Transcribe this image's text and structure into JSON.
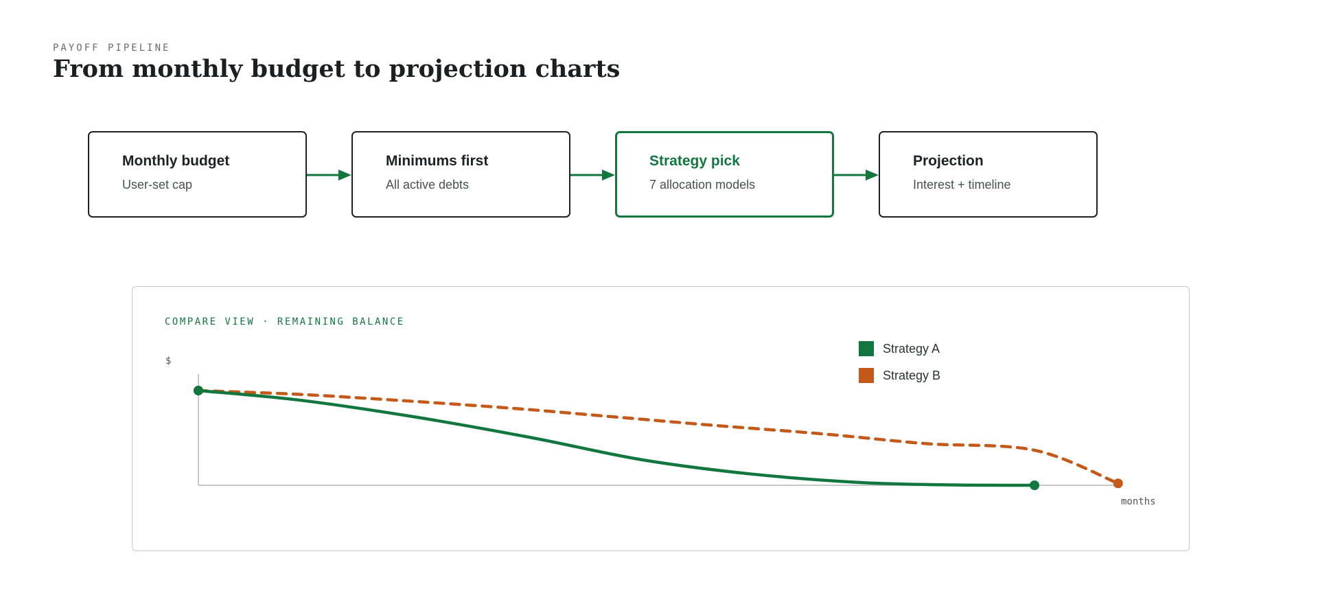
{
  "header": {
    "eyebrow": "PAYOFF PIPELINE",
    "title": "From monthly budget to projection charts"
  },
  "pipeline": {
    "accent": "#11773f",
    "stages": [
      {
        "title": "Monthly budget",
        "subtitle": "User-set cap",
        "active": false
      },
      {
        "title": "Minimums first",
        "subtitle": "All active debts",
        "active": false
      },
      {
        "title": "Strategy pick",
        "subtitle": "7 allocation models",
        "active": true
      },
      {
        "title": "Projection",
        "subtitle": "Interest + timeline",
        "active": false
      }
    ]
  },
  "panel": {
    "label": "COMPARE VIEW · REMAINING BALANCE"
  },
  "chart_data": {
    "type": "line",
    "ylabel": "$",
    "xlabel": "months",
    "xlim": [
      0,
      100
    ],
    "ylim": [
      0,
      100
    ],
    "grid": false,
    "legend_placement": "top-right",
    "series": [
      {
        "name": "Strategy A",
        "color": "#11773f",
        "style": "solid",
        "points": [
          [
            0,
            100
          ],
          [
            12,
            90
          ],
          [
            26,
            72
          ],
          [
            40,
            50
          ],
          [
            53,
            27
          ],
          [
            66,
            12
          ],
          [
            79,
            3
          ],
          [
            89,
            0.5
          ],
          [
            100,
            0
          ]
        ]
      },
      {
        "name": "Strategy B",
        "color": "#c4591a",
        "style": "dashed",
        "points": [
          [
            0,
            100
          ],
          [
            12,
            96
          ],
          [
            25,
            89
          ],
          [
            38,
            81
          ],
          [
            50,
            72
          ],
          [
            62,
            63
          ],
          [
            75,
            54
          ],
          [
            87,
            44
          ],
          [
            100,
            37
          ],
          [
            110,
            2
          ]
        ]
      }
    ]
  }
}
